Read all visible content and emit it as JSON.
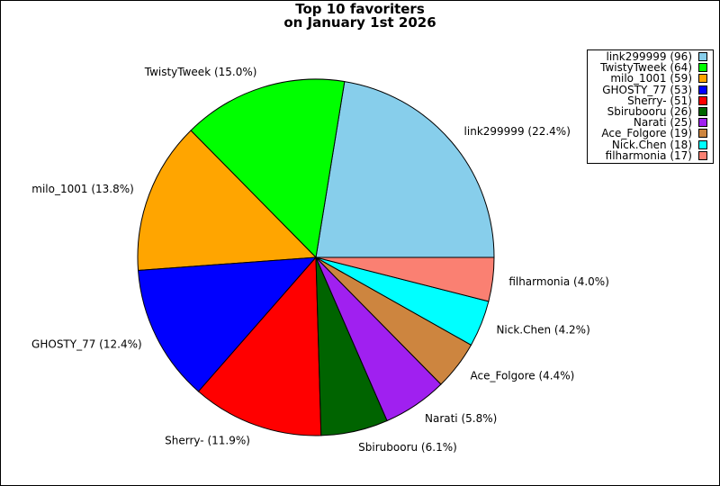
{
  "chart_data": {
    "type": "pie",
    "title_lines": [
      "Top 10 favoriters",
      "on January 1st 2026"
    ],
    "legend_position": "top-right",
    "slices": [
      {
        "name": "link299999",
        "value": 96,
        "percent_label": "link299999 (22.4%)",
        "legend_label": "link299999 (96)",
        "color": "#87ceeb"
      },
      {
        "name": "TwistyTweek",
        "value": 64,
        "percent_label": "TwistyTweek (15.0%)",
        "legend_label": "TwistyTweek (64)",
        "color": "#00ff00"
      },
      {
        "name": "milo_1001",
        "value": 59,
        "percent_label": "milo_1001 (13.8%)",
        "legend_label": "milo_1001 (59)",
        "color": "#ffa500"
      },
      {
        "name": "GHOSTY_77",
        "value": 53,
        "percent_label": "GHOSTY_77 (12.4%)",
        "legend_label": "GHOSTY_77 (53)",
        "color": "#0000ff"
      },
      {
        "name": "Sherry-",
        "value": 51,
        "percent_label": "Sherry- (11.9%)",
        "legend_label": "Sherry- (51)",
        "color": "#ff0000"
      },
      {
        "name": "Sbirubooru",
        "value": 26,
        "percent_label": "Sbirubooru (6.1%)",
        "legend_label": "Sbirubooru (26)",
        "color": "#006400"
      },
      {
        "name": "Narati",
        "value": 25,
        "percent_label": "Narati (5.8%)",
        "legend_label": "Narati (25)",
        "color": "#a020f0"
      },
      {
        "name": "Ace_Folgore",
        "value": 19,
        "percent_label": "Ace_Folgore (4.4%)",
        "legend_label": "Ace_Folgore (19)",
        "color": "#cd853f"
      },
      {
        "name": "Nick.Chen",
        "value": 18,
        "percent_label": "Nick.Chen (4.2%)",
        "legend_label": "Nick.Chen (18)",
        "color": "#00ffff"
      },
      {
        "name": "filharmonia",
        "value": 17,
        "percent_label": "filharmonia (4.0%)",
        "legend_label": "filharmonia (17)",
        "color": "#fa8072"
      }
    ]
  }
}
